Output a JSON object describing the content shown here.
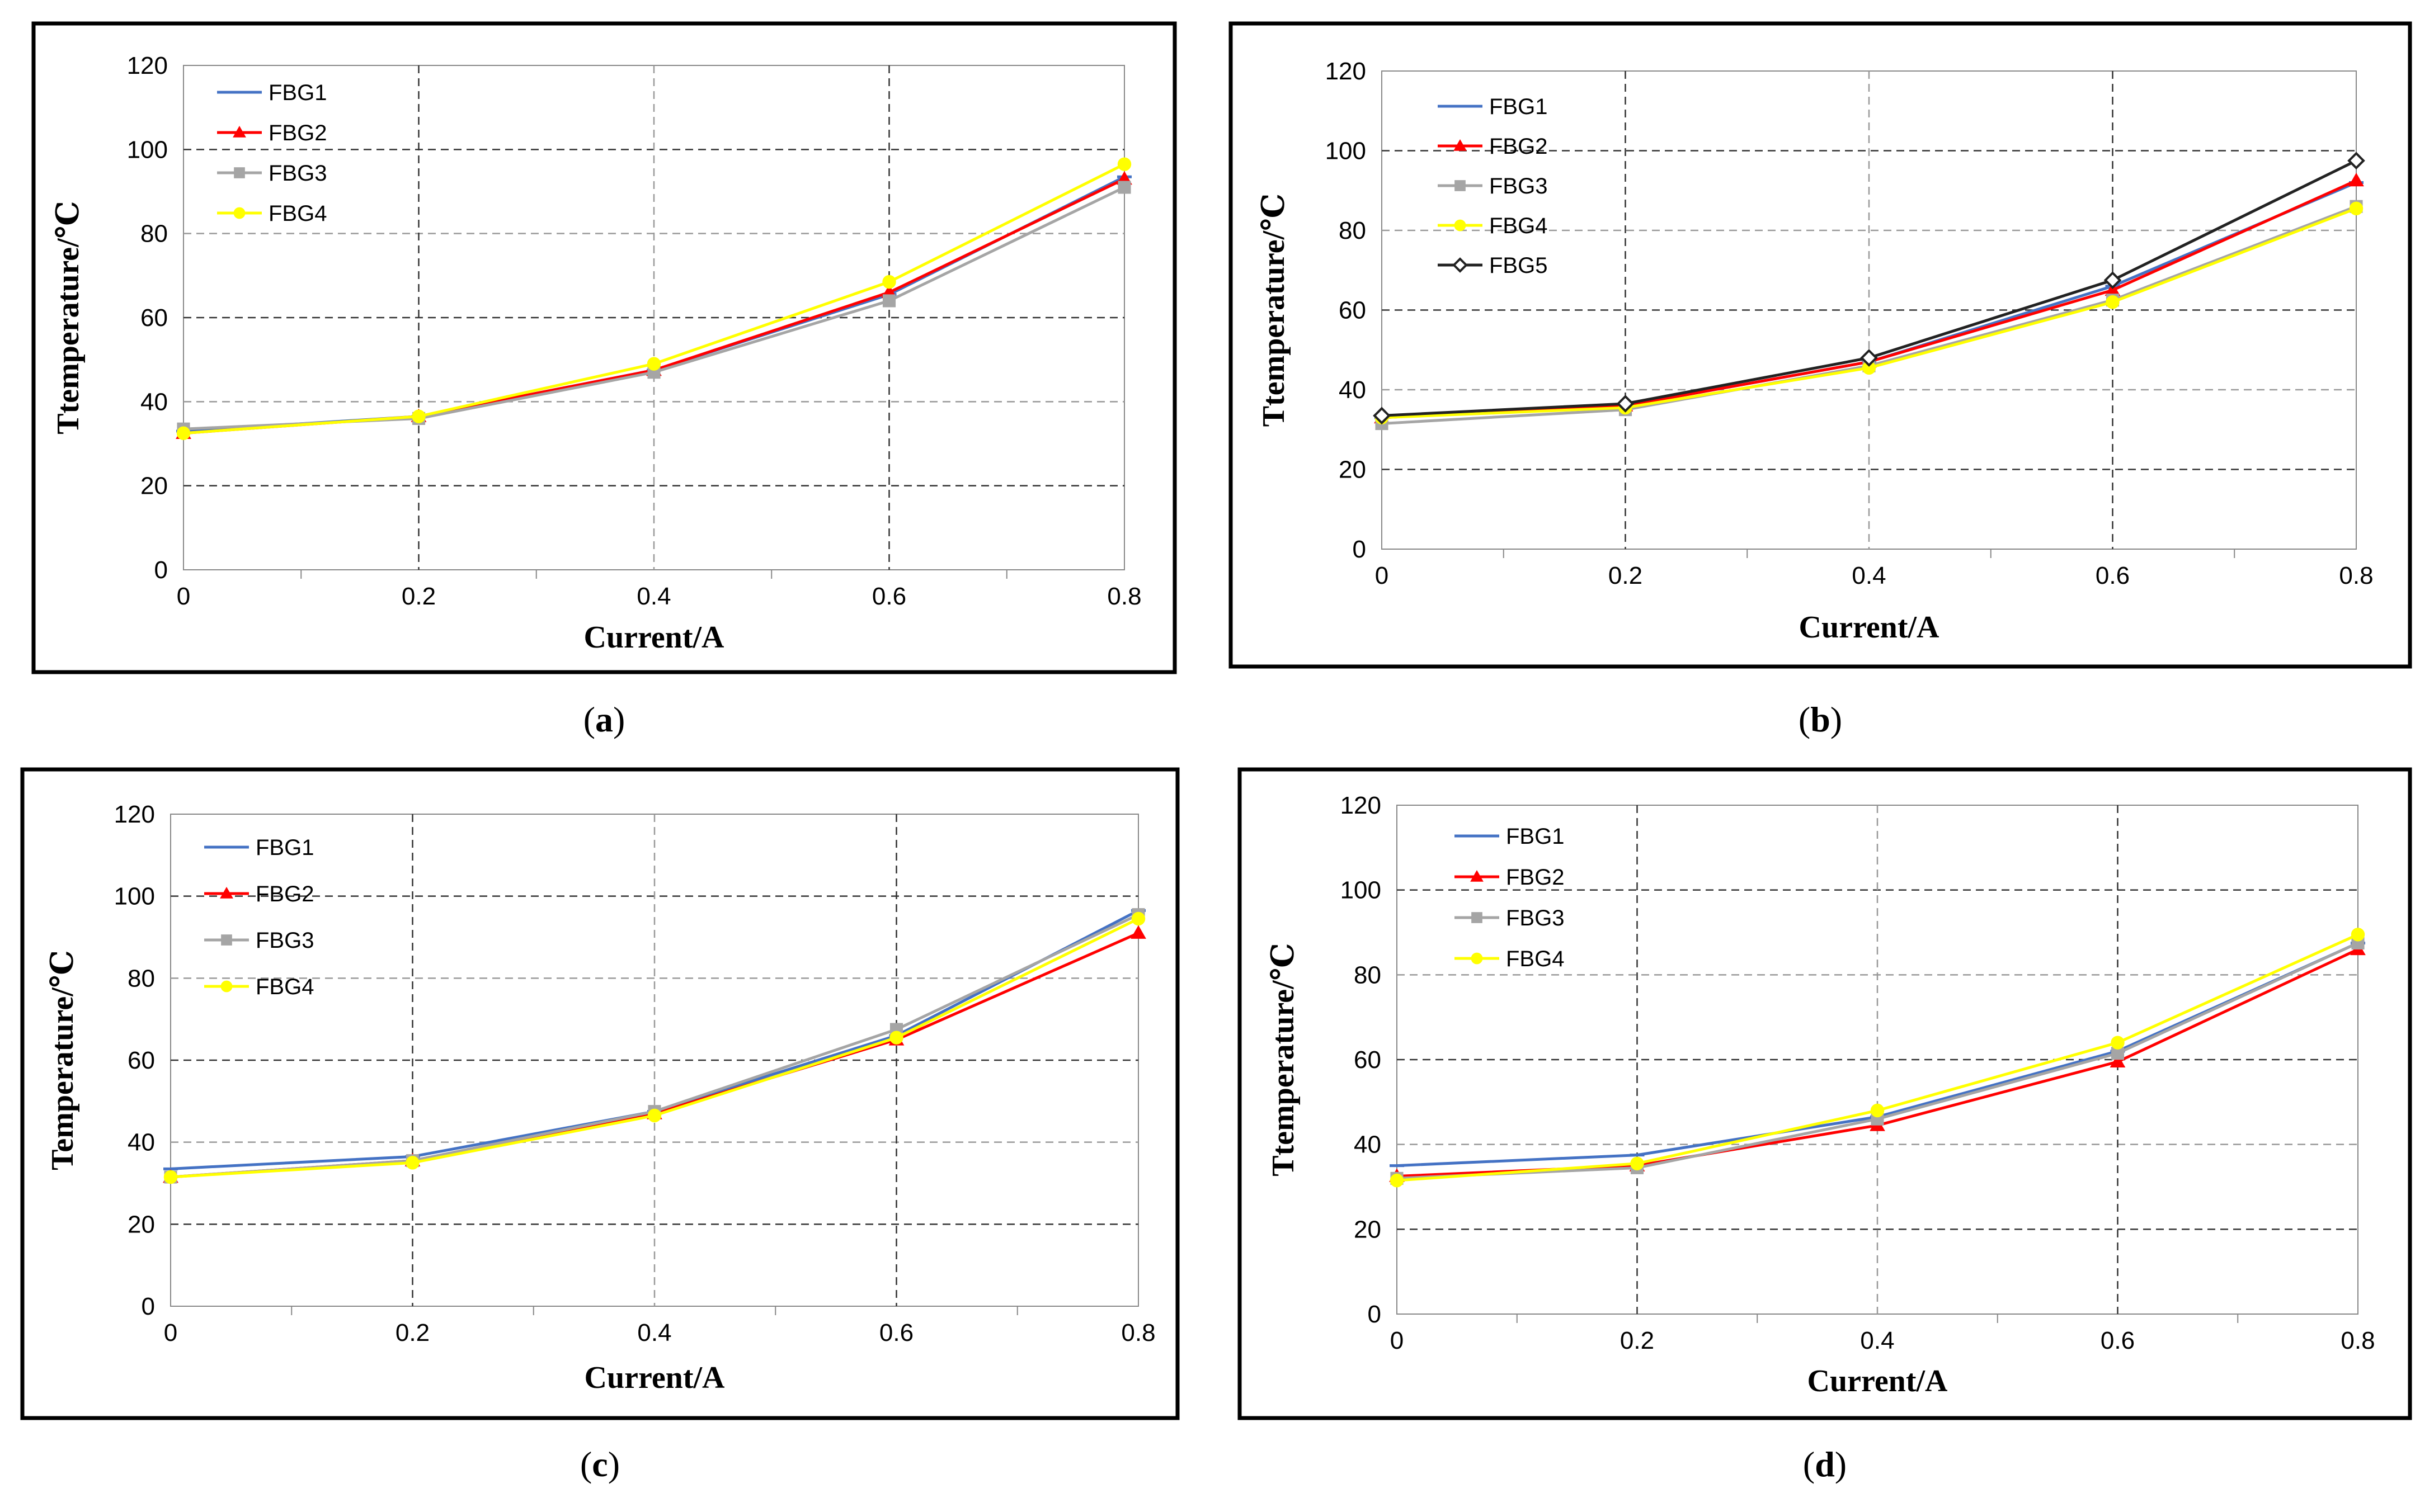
{
  "colors": {
    "FBG1": "#4472C4",
    "FBG2": "#FF0000",
    "FBG3": "#A5A5A5",
    "FBG4": "#FFFF00",
    "FBG5": "#222222"
  },
  "chart_data": [
    {
      "type": "line",
      "caption": "a",
      "x": [
        0,
        0.2,
        0.4,
        0.6,
        0.8
      ],
      "x_tick_labels": [
        "0",
        "0.2",
        "0.4",
        "0.6",
        "0.8"
      ],
      "y_tick_labels": [
        "0",
        "20",
        "40",
        "60",
        "80",
        "100",
        "120"
      ],
      "xlim": [
        0,
        0.8
      ],
      "ylim": [
        0,
        120
      ],
      "xlabel": "Current/A",
      "ylabel": "Ttemperature/℃",
      "grid": true,
      "legend_position": "top-left",
      "series": [
        {
          "name": "FBG1",
          "marker": "dash",
          "values": [
            33,
            36.5,
            47.5,
            65.5,
            93.5
          ]
        },
        {
          "name": "FBG2",
          "marker": "triangle",
          "values": [
            32.5,
            36.5,
            47.5,
            66,
            93
          ]
        },
        {
          "name": "FBG3",
          "marker": "square",
          "values": [
            33.5,
            36,
            47,
            64,
            91
          ]
        },
        {
          "name": "FBG4",
          "marker": "circle",
          "values": [
            32.5,
            36.5,
            49,
            68.5,
            96.5
          ]
        }
      ]
    },
    {
      "type": "line",
      "caption": "b",
      "x": [
        0,
        0.2,
        0.4,
        0.6,
        0.8
      ],
      "x_tick_labels": [
        "0",
        "0.2",
        "0.4",
        "0.6",
        "0.8"
      ],
      "y_tick_labels": [
        "0",
        "20",
        "40",
        "60",
        "80",
        "100",
        "120"
      ],
      "xlim": [
        0,
        0.8
      ],
      "ylim": [
        0,
        120
      ],
      "xlabel": "Current/A",
      "ylabel": "Ttemperature/℃",
      "grid": true,
      "legend_position": "top-left",
      "series": [
        {
          "name": "FBG1",
          "marker": "dash",
          "values": [
            33,
            36,
            47,
            66,
            92
          ]
        },
        {
          "name": "FBG2",
          "marker": "triangle",
          "values": [
            33,
            36,
            47,
            65,
            92.5
          ]
        },
        {
          "name": "FBG3",
          "marker": "square",
          "values": [
            31.5,
            35,
            46,
            62.5,
            86
          ]
        },
        {
          "name": "FBG4",
          "marker": "circle",
          "values": [
            33,
            35.5,
            45.5,
            62,
            85.5
          ]
        },
        {
          "name": "FBG5",
          "marker": "diamond",
          "values": [
            33.5,
            36.5,
            48,
            67.5,
            97.5
          ]
        }
      ]
    },
    {
      "type": "line",
      "caption": "c",
      "x": [
        0,
        0.2,
        0.4,
        0.6,
        0.8
      ],
      "x_tick_labels": [
        "0",
        "0.2",
        "0.4",
        "0.6",
        "0.8"
      ],
      "y_tick_labels": [
        "0",
        "20",
        "40",
        "60",
        "80",
        "100",
        "120"
      ],
      "xlim": [
        0,
        0.8
      ],
      "ylim": [
        0,
        120
      ],
      "xlabel": "Current/A",
      "ylabel": "Temperature/℃",
      "grid": true,
      "legend_position": "top-left",
      "series": [
        {
          "name": "FBG1",
          "marker": "dash",
          "values": [
            33.5,
            36.5,
            47.5,
            66,
            96.5
          ]
        },
        {
          "name": "FBG2",
          "marker": "triangle",
          "values": [
            31.5,
            35.5,
            47,
            65,
            91
          ]
        },
        {
          "name": "FBG3",
          "marker": "square",
          "values": [
            31.5,
            35.5,
            47.5,
            67.5,
            95.5
          ]
        },
        {
          "name": "FBG4",
          "marker": "circle",
          "values": [
            31.5,
            35,
            46.5,
            65.5,
            94.5
          ]
        }
      ]
    },
    {
      "type": "line",
      "caption": "d",
      "x": [
        0,
        0.2,
        0.4,
        0.6,
        0.8
      ],
      "x_tick_labels": [
        "0",
        "0.2",
        "0.4",
        "0.6",
        "0.8"
      ],
      "y_tick_labels": [
        "0",
        "20",
        "40",
        "60",
        "80",
        "100",
        "120"
      ],
      "xlim": [
        0,
        0.8
      ],
      "ylim": [
        0,
        120
      ],
      "xlabel": "Current/A",
      "ylabel": "Ttemperature/℃",
      "grid": true,
      "legend_position": "top-left",
      "series": [
        {
          "name": "FBG1",
          "marker": "dash",
          "values": [
            35,
            37.5,
            46.5,
            62,
            87.5
          ]
        },
        {
          "name": "FBG2",
          "marker": "triangle",
          "values": [
            32.5,
            35,
            44.5,
            59.5,
            86
          ]
        },
        {
          "name": "FBG3",
          "marker": "square",
          "values": [
            32,
            34.5,
            46,
            61.5,
            87.5
          ]
        },
        {
          "name": "FBG4",
          "marker": "circle",
          "values": [
            31.5,
            35.5,
            48,
            64,
            89.5
          ]
        }
      ]
    }
  ]
}
